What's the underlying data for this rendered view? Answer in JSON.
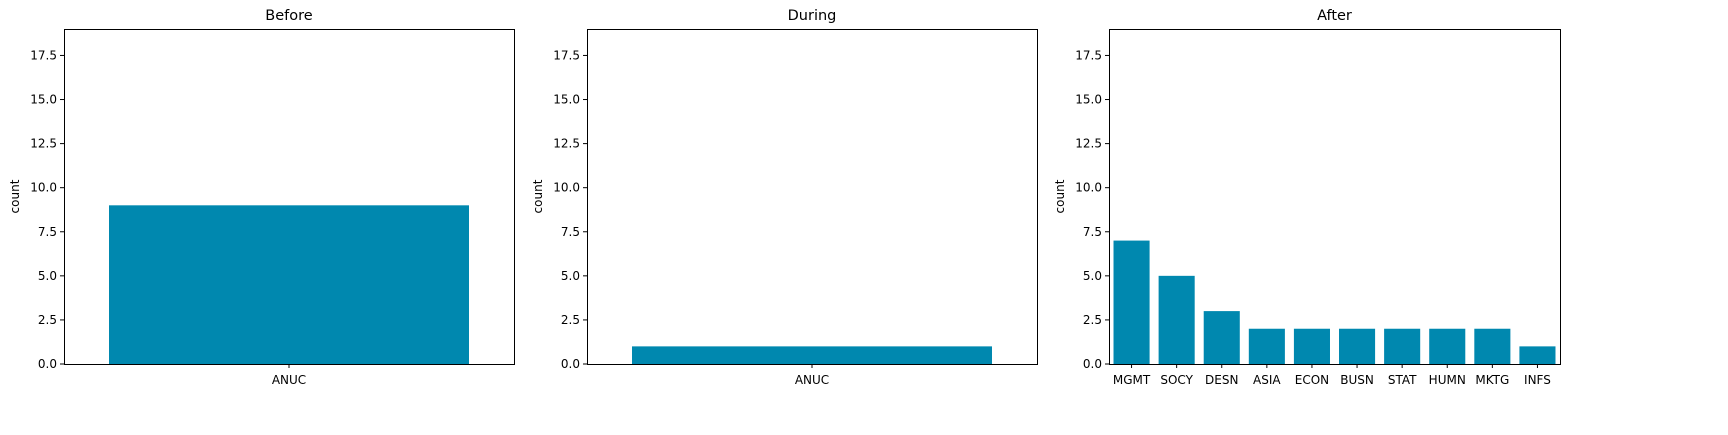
{
  "bar_color": "#0088AF",
  "chart_data": [
    {
      "type": "bar",
      "title": "Before",
      "xlabel": "",
      "ylabel": "count",
      "ylim": [
        0,
        19
      ],
      "yticks": [
        "0.0",
        "2.5",
        "5.0",
        "7.5",
        "10.0",
        "12.5",
        "15.0",
        "17.5"
      ],
      "categories": [
        "ANUC"
      ],
      "values": [
        9
      ],
      "grid": false
    },
    {
      "type": "bar",
      "title": "During",
      "xlabel": "",
      "ylabel": "count",
      "ylim": [
        0,
        19
      ],
      "yticks": [
        "0.0",
        "2.5",
        "5.0",
        "7.5",
        "10.0",
        "12.5",
        "15.0",
        "17.5"
      ],
      "categories": [
        "ANUC"
      ],
      "values": [
        1
      ],
      "grid": false
    },
    {
      "type": "bar",
      "title": "After",
      "xlabel": "",
      "ylabel": "count",
      "ylim": [
        0,
        19
      ],
      "yticks": [
        "0.0",
        "2.5",
        "5.0",
        "7.5",
        "10.0",
        "12.5",
        "15.0",
        "17.5"
      ],
      "categories": [
        "MGMT",
        "SOCY",
        "DESN",
        "ASIA",
        "ECON",
        "BUSN",
        "STAT",
        "HUMN",
        "MKTG",
        "INFS"
      ],
      "values": [
        7,
        5,
        3,
        2,
        2,
        2,
        2,
        2,
        2,
        1
      ],
      "grid": false
    }
  ]
}
